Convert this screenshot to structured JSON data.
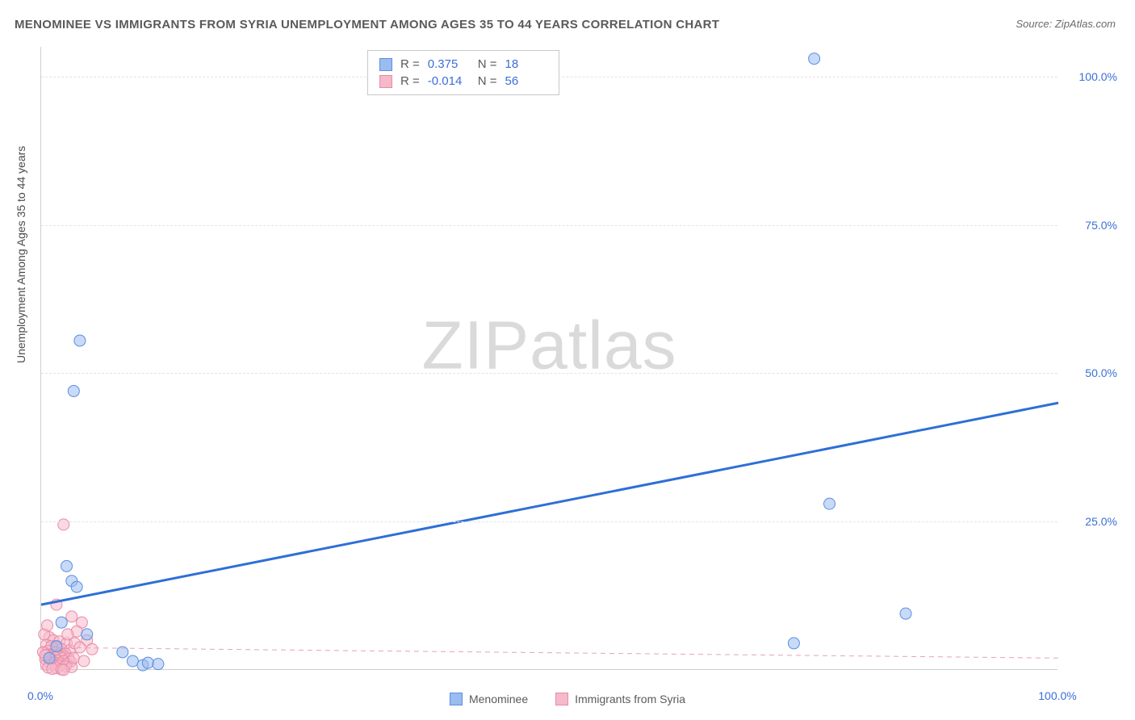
{
  "title": "MENOMINEE VS IMMIGRANTS FROM SYRIA UNEMPLOYMENT AMONG AGES 35 TO 44 YEARS CORRELATION CHART",
  "source": "Source: ZipAtlas.com",
  "watermark": "ZIPatlas",
  "chart": {
    "type": "scatter",
    "y_axis_label": "Unemployment Among Ages 35 to 44 years",
    "xlim": [
      0,
      100
    ],
    "ylim": [
      0,
      105
    ],
    "y_ticks": [
      25,
      50,
      75,
      100
    ],
    "y_tick_labels": [
      "25.0%",
      "50.0%",
      "75.0%",
      "100.0%"
    ],
    "x_ticks": [
      0,
      100
    ],
    "x_tick_labels": [
      "0.0%",
      "100.0%"
    ],
    "background_color": "#ffffff",
    "grid_color": "#e3e3e3",
    "axis_color": "#cfcfcf",
    "tick_label_color": "#3b6fd6",
    "title_color": "#5a5a5a",
    "title_fontsize": 15,
    "label_fontsize": 14,
    "marker_radius": 7,
    "marker_opacity": 0.55,
    "series": [
      {
        "name": "Menominee",
        "color_fill": "#9bbcf0",
        "color_stroke": "#5a8fe0",
        "R": "0.375",
        "N": "18",
        "regression": {
          "x1": 0,
          "y1": 11,
          "x2": 100,
          "y2": 45,
          "stroke": "#2e6fd6",
          "width": 3,
          "dash": "none"
        },
        "points": [
          [
            3.8,
            55.5
          ],
          [
            3.2,
            47.0
          ],
          [
            2.5,
            17.5
          ],
          [
            3.0,
            15.0
          ],
          [
            3.5,
            14.0
          ],
          [
            1.5,
            4.0
          ],
          [
            8.0,
            3.0
          ],
          [
            9.0,
            1.5
          ],
          [
            10.0,
            0.8
          ],
          [
            10.5,
            1.2
          ],
          [
            11.5,
            1.0
          ],
          [
            0.8,
            2.0
          ],
          [
            76.0,
            103.0
          ],
          [
            77.5,
            28.0
          ],
          [
            74.0,
            4.5
          ],
          [
            85.0,
            9.5
          ],
          [
            2.0,
            8.0
          ],
          [
            4.5,
            6.0
          ]
        ]
      },
      {
        "name": "Immigrants from Syria",
        "color_fill": "#f5b9ca",
        "color_stroke": "#e98aa6",
        "R": "-0.014",
        "N": "56",
        "regression": {
          "x1": 0,
          "y1": 3.8,
          "x2": 100,
          "y2": 2.0,
          "stroke": "#e7a2b6",
          "width": 1,
          "dash": "6,5"
        },
        "points": [
          [
            2.2,
            24.5
          ],
          [
            1.5,
            11.0
          ],
          [
            3.0,
            9.0
          ],
          [
            0.8,
            5.5
          ],
          [
            1.2,
            5.0
          ],
          [
            1.8,
            4.8
          ],
          [
            2.5,
            4.5
          ],
          [
            0.5,
            4.2
          ],
          [
            1.0,
            4.0
          ],
          [
            1.5,
            3.8
          ],
          [
            2.0,
            3.5
          ],
          [
            2.8,
            3.3
          ],
          [
            0.7,
            3.2
          ],
          [
            1.3,
            3.0
          ],
          [
            1.9,
            2.8
          ],
          [
            2.4,
            2.7
          ],
          [
            0.6,
            2.6
          ],
          [
            1.1,
            2.5
          ],
          [
            1.7,
            2.4
          ],
          [
            2.3,
            2.3
          ],
          [
            0.9,
            2.2
          ],
          [
            1.4,
            2.1
          ],
          [
            2.1,
            2.0
          ],
          [
            2.7,
            1.9
          ],
          [
            0.4,
            1.8
          ],
          [
            1.0,
            1.7
          ],
          [
            1.6,
            1.6
          ],
          [
            2.2,
            1.5
          ],
          [
            2.9,
            1.4
          ],
          [
            0.8,
            1.3
          ],
          [
            1.3,
            1.2
          ],
          [
            1.9,
            1.1
          ],
          [
            2.5,
            1.0
          ],
          [
            0.5,
            0.9
          ],
          [
            1.2,
            0.8
          ],
          [
            1.8,
            0.7
          ],
          [
            2.4,
            0.6
          ],
          [
            3.0,
            0.5
          ],
          [
            0.7,
            0.4
          ],
          [
            1.5,
            0.3
          ],
          [
            4.0,
            8.0
          ],
          [
            3.5,
            6.5
          ],
          [
            4.5,
            5.0
          ],
          [
            3.2,
            2.0
          ],
          [
            4.2,
            1.5
          ],
          [
            5.0,
            3.5
          ],
          [
            0.3,
            6.0
          ],
          [
            0.6,
            7.5
          ],
          [
            2.6,
            6.0
          ],
          [
            3.3,
            4.5
          ],
          [
            1.1,
            0.2
          ],
          [
            2.0,
            0.1
          ],
          [
            0.2,
            3.0
          ],
          [
            0.4,
            2.5
          ],
          [
            3.8,
            3.8
          ],
          [
            2.2,
            0.0
          ]
        ]
      }
    ]
  }
}
